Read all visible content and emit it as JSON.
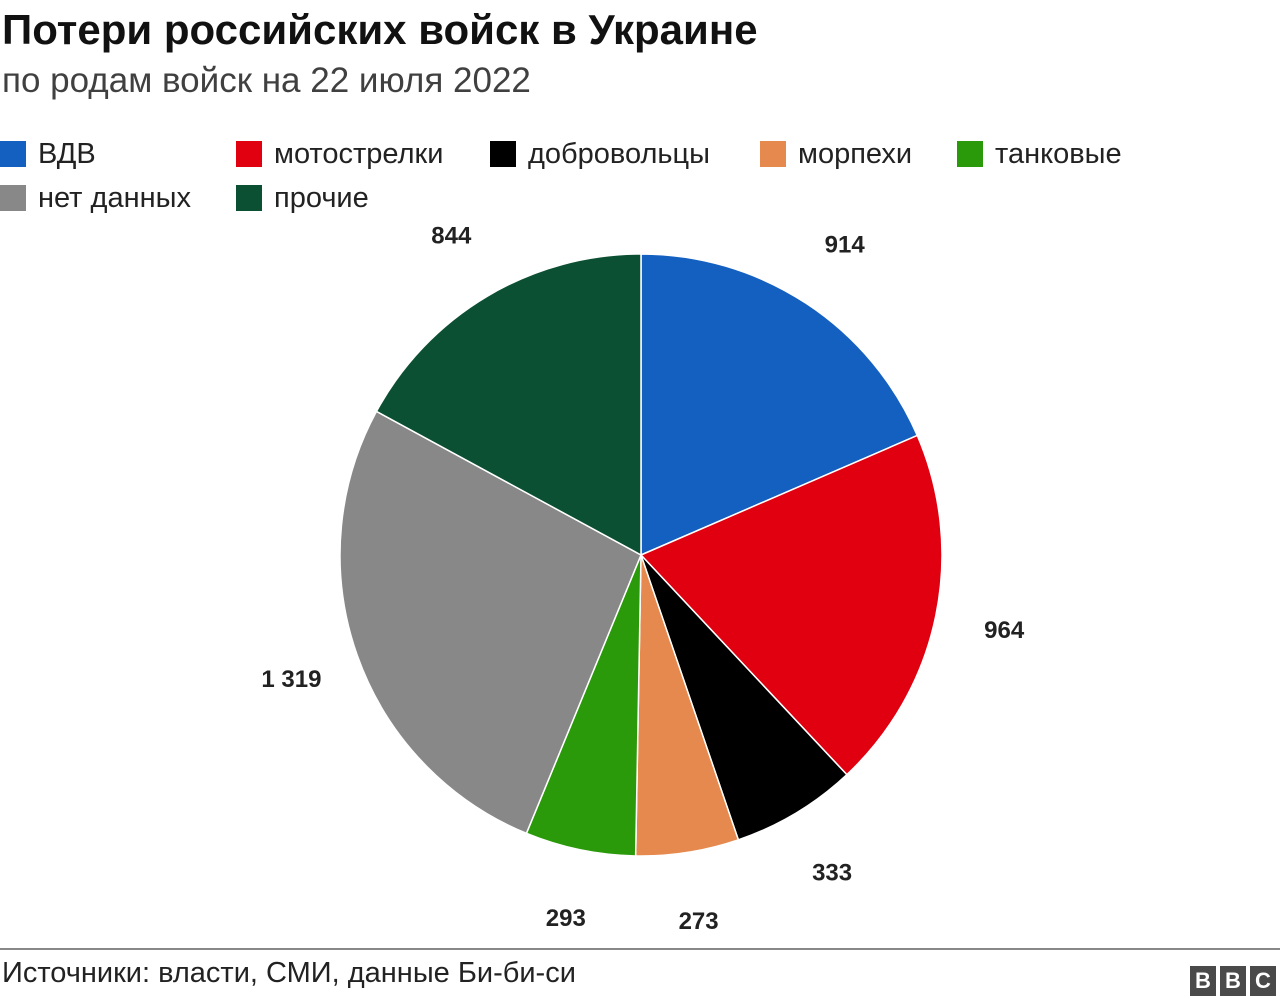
{
  "header": {
    "title": "Потери российских войск в Украине",
    "subtitle": "по родам войск на 22 июля 2022"
  },
  "chart_data": {
    "type": "pie",
    "title": "Потери российских войск в Украине",
    "subtitle": "по родам войск на 22 июля 2022",
    "legend_position": "top",
    "start": "12 o'clock",
    "direction": "clockwise",
    "slices": [
      {
        "name": "ВДВ",
        "value": 914,
        "label": "914",
        "color": "#1360c0"
      },
      {
        "name": "мотострелки",
        "value": 964,
        "label": "964",
        "color": "#e10010"
      },
      {
        "name": "добровольцы",
        "value": 333,
        "label": "333",
        "color": "#000000"
      },
      {
        "name": "морпехи",
        "value": 273,
        "label": "273",
        "color": "#e5894e"
      },
      {
        "name": "танковые",
        "value": 293,
        "label": "293",
        "color": "#2a990a"
      },
      {
        "name": "нет данных",
        "value": 1319,
        "label": "1 319",
        "color": "#888888"
      },
      {
        "name": "прочие",
        "value": 844,
        "label": "844",
        "color": "#0b5032"
      }
    ]
  },
  "footer": {
    "source": "Источники: власти, СМИ, данные Би-би-си",
    "logo": [
      "B",
      "B",
      "C"
    ]
  }
}
